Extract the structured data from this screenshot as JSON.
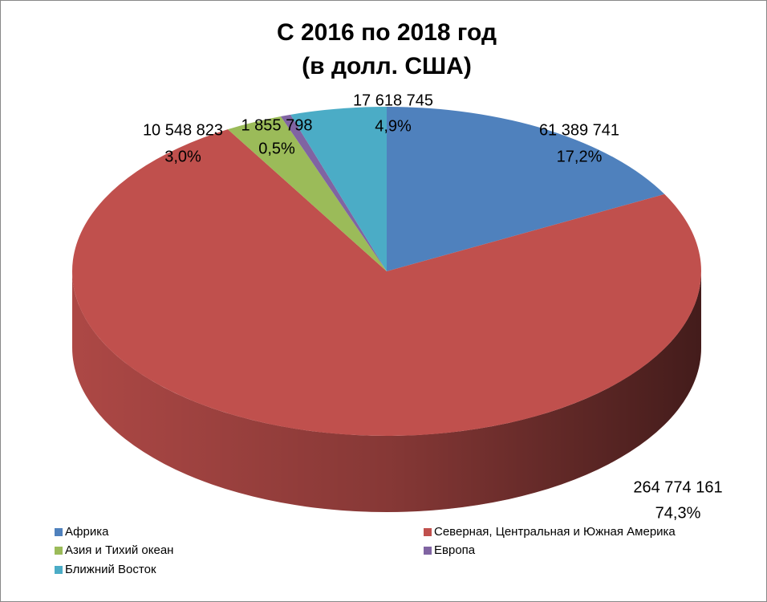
{
  "chart_data": {
    "type": "pie3d",
    "title": "С 2016 по 2018 год",
    "subtitle": "(в долл. США)",
    "categories": [
      "Африка",
      "Северная, Центральная и Южная Америка",
      "Азия и Тихий океан",
      "Европа",
      "Ближний Восток"
    ],
    "values": [
      61389741,
      264774161,
      10548823,
      1855798,
      17618745
    ],
    "value_labels": [
      "61 389 741",
      "264 774 161",
      "10 548 823",
      "1 855 798",
      "17 618 745"
    ],
    "percentages": [
      17.2,
      74.3,
      3.0,
      0.5,
      4.9
    ],
    "percent_labels": [
      "17,2%",
      "74,3%",
      "3,0%",
      "0,5%",
      "4,9%"
    ],
    "colors": [
      "#4f81bd",
      "#c0504d",
      "#9bbb59",
      "#8064a2",
      "#4bacc6"
    ],
    "legend": "bottom"
  }
}
